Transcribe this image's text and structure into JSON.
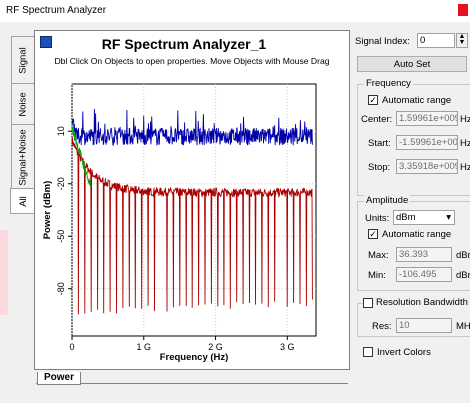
{
  "window": {
    "title": "RF Spectrum Analyzer"
  },
  "side_tabs": [
    {
      "label": "Signal"
    },
    {
      "label": "Noise"
    },
    {
      "label": "Signal+Noise"
    },
    {
      "label": "All"
    }
  ],
  "plot": {
    "title": "RF Spectrum Analyzer_1",
    "subtitle": "Dbl Click On Objects to open properties.  Move Objects with Mouse Drag",
    "bottom_tab": "Power"
  },
  "chart_data": {
    "type": "line",
    "xlabel": "Frequency (Hz)",
    "ylabel": "Power (dBm)",
    "xlim": [
      0,
      3400000000.0
    ],
    "ylim": [
      -107,
      37
    ],
    "x_ticks": [
      {
        "value": 0,
        "label": "0"
      },
      {
        "value": 1000000000.0,
        "label": "1 G"
      },
      {
        "value": 2000000000.0,
        "label": "2 G"
      },
      {
        "value": 3000000000.0,
        "label": "3 G"
      }
    ],
    "y_ticks": [
      {
        "value": 10,
        "label": "10"
      },
      {
        "value": -20,
        "label": "-20"
      },
      {
        "value": -50,
        "label": "-50"
      },
      {
        "value": -80,
        "label": "-80"
      }
    ],
    "grid": true,
    "series": [
      {
        "color": "#0000aa",
        "kind": "noise",
        "level": 7,
        "spread": 5,
        "spike": 12
      },
      {
        "color": "#aa0000",
        "kind": "comb",
        "level": -25,
        "decay_from": 5,
        "notch_depth": -90,
        "notches": 38
      },
      {
        "color": "#00aa00",
        "kind": "rolloff",
        "from": 12,
        "to": -22
      }
    ]
  },
  "signal_index": {
    "label": "Signal Index:",
    "value": "0"
  },
  "auto_set": {
    "label": "Auto Set"
  },
  "frequency": {
    "title": "Frequency",
    "auto_range": "Automatic range",
    "center": {
      "label": "Center:",
      "value": "1.59961e+009",
      "unit": "Hz"
    },
    "start": {
      "label": "Start:",
      "value": "-1.59961e+00&",
      "unit": "Hz"
    },
    "stop": {
      "label": "Stop:",
      "value": "3.35918e+009",
      "unit": "Hz"
    }
  },
  "amplitude": {
    "title": "Amplitude",
    "units_label": "Units:",
    "units_value": "dBm",
    "auto_range": "Automatic range",
    "max": {
      "label": "Max:",
      "value": "36.393",
      "unit": "dBr"
    },
    "min": {
      "label": "Min:",
      "value": "-106.495",
      "unit": "dBr"
    }
  },
  "resolution": {
    "title": "Resolution Bandwidth",
    "res": {
      "label": "Res:",
      "value": "10",
      "unit": "MH"
    }
  },
  "invert_colors": {
    "label": "Invert Colors"
  }
}
